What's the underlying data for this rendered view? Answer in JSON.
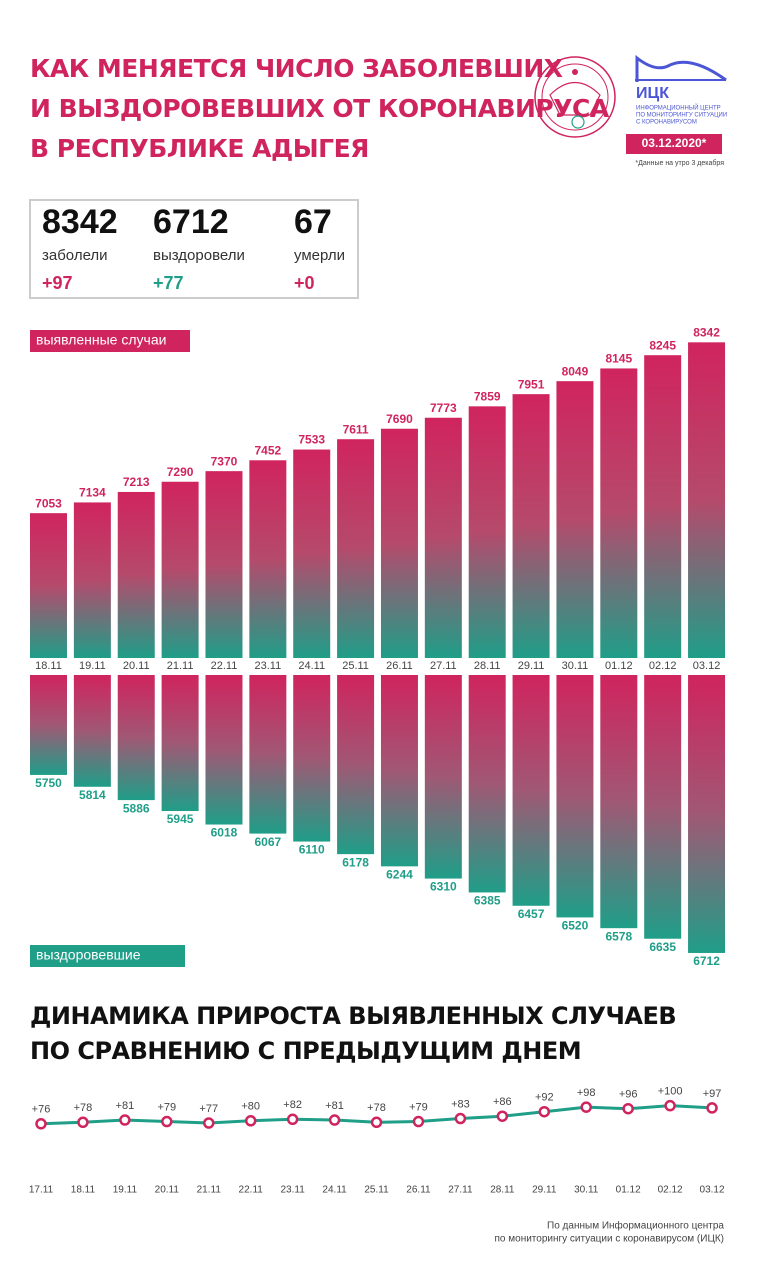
{
  "header": {
    "title": [
      "КАК МЕНЯЕТСЯ ЧИСЛО ЗАБОЛЕВШИХ",
      "И ВЫЗДОРОВЕВШИХ ОТ КОРОНАВИРУСА",
      "В РЕСПУБЛИКЕ АДЫГЕЯ"
    ],
    "logo_text": "ИЦК",
    "logo_caption": [
      "ИНФОРМАЦИОННЫЙ ЦЕНТР",
      "ПО МОНИТОРИНГУ СИТУАЦИИ",
      "С КОРОНАВИРУСОМ"
    ],
    "date": "03.12.2020*",
    "date_note": "*Данные на утро 3 декабря"
  },
  "stats": [
    {
      "value": "8342",
      "label": "заболели",
      "delta": "+97",
      "color": "#d0245e"
    },
    {
      "value": "6712",
      "label": "выздоровели",
      "delta": "+77",
      "color": "#1f9e88"
    },
    {
      "value": "67",
      "label": "умерли",
      "delta": "+0",
      "color": "#d0245e"
    }
  ],
  "chart_data": [
    {
      "type": "bar",
      "label": "выявленные случаи",
      "direction": "up",
      "color": "#d0245e",
      "categories": [
        "18.11",
        "19.11",
        "20.11",
        "21.11",
        "22.11",
        "23.11",
        "24.11",
        "25.11",
        "26.11",
        "27.11",
        "28.11",
        "29.11",
        "30.11",
        "01.12",
        "02.12",
        "03.12"
      ],
      "values": [
        7053,
        7134,
        7213,
        7290,
        7370,
        7452,
        7533,
        7611,
        7690,
        7773,
        7859,
        7951,
        8049,
        8145,
        8245,
        8342
      ],
      "ylim": [
        5960,
        8420
      ]
    },
    {
      "type": "bar",
      "label": "выздоровевшие",
      "direction": "down",
      "color": "#1f9e88",
      "values": [
        5750,
        5814,
        5886,
        5945,
        6018,
        6067,
        6110,
        6178,
        6244,
        6310,
        6385,
        6457,
        6520,
        6578,
        6635,
        6712
      ],
      "ylim": [
        5210,
        6750
      ]
    },
    {
      "type": "line",
      "title": [
        "ДИНАМИКА ПРИРОСТА ВЫЯВЛЕННЫХ СЛУЧАЕВ",
        "ПО СРАВНЕНИЮ С ПРЕДЫДУЩИМ ДНЕМ"
      ],
      "color": "#1f9e88",
      "marker_color": "#d0245e",
      "categories": [
        "17.11",
        "18.11",
        "19.11",
        "20.11",
        "21.11",
        "22.11",
        "23.11",
        "24.11",
        "25.11",
        "26.11",
        "27.11",
        "28.11",
        "29.11",
        "30.11",
        "01.12",
        "02.12",
        "03.12"
      ],
      "values": [
        76,
        78,
        81,
        79,
        77,
        80,
        82,
        81,
        78,
        79,
        83,
        86,
        92,
        98,
        96,
        100,
        97
      ],
      "value_labels": [
        "+76",
        "+78",
        "+81",
        "+79",
        "+77",
        "+80",
        "+82",
        "+81",
        "+78",
        "+79",
        "+83",
        "+86",
        "+92",
        "+98",
        "+96",
        "+100",
        "+97"
      ],
      "ylim": [
        40,
        130
      ]
    }
  ],
  "footer": [
    "По данным Информационного центра",
    "по мониторингу ситуации с коронавирусом (ИЦК)"
  ]
}
